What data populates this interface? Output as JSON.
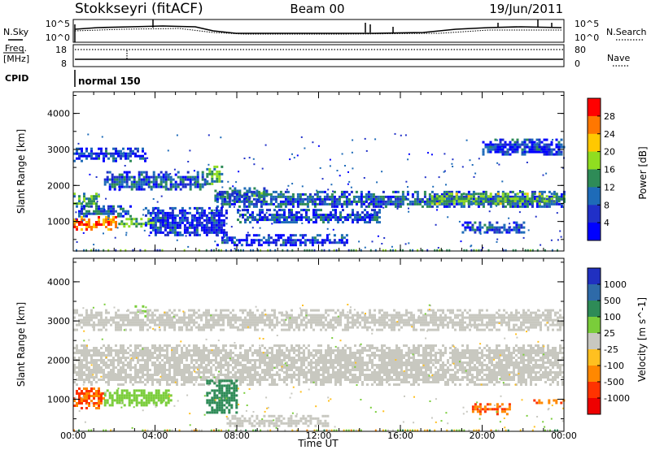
{
  "header": {
    "station": "Stokkseyri (fitACF)",
    "beam": "Beam 00",
    "date": "19/Jun/2011"
  },
  "noise_panel": {
    "left_label": "N.Sky",
    "right_label": "N.Search",
    "ticks_left": [
      "10^5",
      "10^0"
    ],
    "ticks_right": [
      "10^5",
      "10^0"
    ]
  },
  "freq_panel": {
    "left_label_1": "Freq.",
    "left_label_2": "[MHz]",
    "right_label": "Nave",
    "ticks_left": [
      "18",
      "8"
    ],
    "ticks_right": [
      "80",
      "0"
    ]
  },
  "cpid": {
    "label": "CPID",
    "value": "normal 150"
  },
  "axes": {
    "ylabel": "Slant Range [km]",
    "xlabel": "Time UT",
    "yticks": [
      "4000",
      "3000",
      "2000",
      "1000"
    ],
    "xticks": [
      "00:00",
      "04:00",
      "08:00",
      "12:00",
      "16:00",
      "20:00",
      "00:00"
    ]
  },
  "chart_data": [
    {
      "type": "heatmap",
      "panel": "power",
      "xlabel": "Time UT",
      "ylabel": "Slant Range [km]",
      "xlim": [
        0,
        24
      ],
      "ylim": [
        180,
        4600
      ],
      "colorbar_label": "Power [dB]",
      "colorbar_ticks": [
        "28",
        "24",
        "20",
        "16",
        "12",
        "8",
        "4"
      ],
      "colorbar_colors": [
        "#ff0000",
        "#ff7700",
        "#ffc800",
        "#90dd20",
        "#2e8b57",
        "#1e6bb8",
        "#2030c8",
        "#0000ff"
      ],
      "regions": [
        {
          "t0": 0.0,
          "t1": 1.2,
          "r0": 1400,
          "r1": 1800,
          "level": 12
        },
        {
          "t0": 0.0,
          "t1": 2.2,
          "r0": 800,
          "r1": 1150,
          "level": 24
        },
        {
          "t0": 2.2,
          "t1": 4.5,
          "r0": 850,
          "r1": 1100,
          "level": 14
        },
        {
          "t0": 0.0,
          "t1": 2.8,
          "r0": 1150,
          "r1": 1450,
          "level": 8
        },
        {
          "t0": 1.5,
          "t1": 6.5,
          "r0": 1900,
          "r1": 2400,
          "level": 8
        },
        {
          "t0": 6.5,
          "t1": 7.3,
          "r0": 2050,
          "r1": 2550,
          "level": 12
        },
        {
          "t0": 6.9,
          "t1": 9.5,
          "r0": 1600,
          "r1": 1950,
          "level": 10
        },
        {
          "t0": 7.0,
          "t1": 24.0,
          "r0": 1400,
          "r1": 1850,
          "level": 8
        },
        {
          "t0": 17.5,
          "t1": 24.0,
          "r0": 1500,
          "r1": 1800,
          "level": 14
        },
        {
          "t0": 0.0,
          "t1": 3.5,
          "r0": 2700,
          "r1": 3050,
          "level": 6
        },
        {
          "t0": 20.0,
          "t1": 24.0,
          "r0": 2850,
          "r1": 3300,
          "level": 6
        },
        {
          "t0": 3.5,
          "t1": 7.5,
          "r0": 600,
          "r1": 1400,
          "level": 6
        },
        {
          "t0": 7.0,
          "t1": 13.5,
          "r0": 350,
          "r1": 650,
          "level": 6
        },
        {
          "t0": 8.0,
          "t1": 15.0,
          "r0": 950,
          "r1": 1350,
          "level": 7
        },
        {
          "t0": 19.0,
          "t1": 22.0,
          "r0": 700,
          "r1": 1000,
          "level": 7
        }
      ]
    },
    {
      "type": "heatmap",
      "panel": "velocity",
      "xlabel": "Time UT",
      "ylabel": "Slant Range [km]",
      "xlim": [
        0,
        24
      ],
      "ylim": [
        180,
        4600
      ],
      "colorbar_label": "Velocity [m s^-1]",
      "colorbar_ticks": [
        "1000",
        "500",
        "100",
        "25",
        "-25",
        "-100",
        "-500",
        "-1000"
      ],
      "colorbar_colors": [
        "#2030c0",
        "#2e6aa8",
        "#2e8b57",
        "#7acd3a",
        "#c8c8c0",
        "#ffc020",
        "#ff8800",
        "#ff3300",
        "#ee0000"
      ],
      "regions": [
        {
          "t0": 0.0,
          "t1": 24.0,
          "r0": 1400,
          "r1": 2400,
          "level": 0
        },
        {
          "t0": 0.0,
          "t1": 1.5,
          "r0": 800,
          "r1": 1300,
          "level": -300
        },
        {
          "t0": 1.5,
          "t1": 4.8,
          "r0": 850,
          "r1": 1250,
          "level": 60
        },
        {
          "t0": 6.5,
          "t1": 8.0,
          "r0": 650,
          "r1": 1500,
          "level": 200
        },
        {
          "t0": 7.5,
          "t1": 12.5,
          "r0": 330,
          "r1": 600,
          "level": 0
        },
        {
          "t0": 19.5,
          "t1": 21.5,
          "r0": 650,
          "r1": 900,
          "level": -300
        },
        {
          "t0": 22.5,
          "t1": 24.0,
          "r0": 880,
          "r1": 1000,
          "level": -300
        },
        {
          "t0": 3.0,
          "t1": 3.6,
          "r0": 3150,
          "r1": 3400,
          "level": 60
        },
        {
          "t0": 0.0,
          "t1": 24.0,
          "r0": 2800,
          "r1": 3300,
          "level": 0
        }
      ]
    }
  ]
}
